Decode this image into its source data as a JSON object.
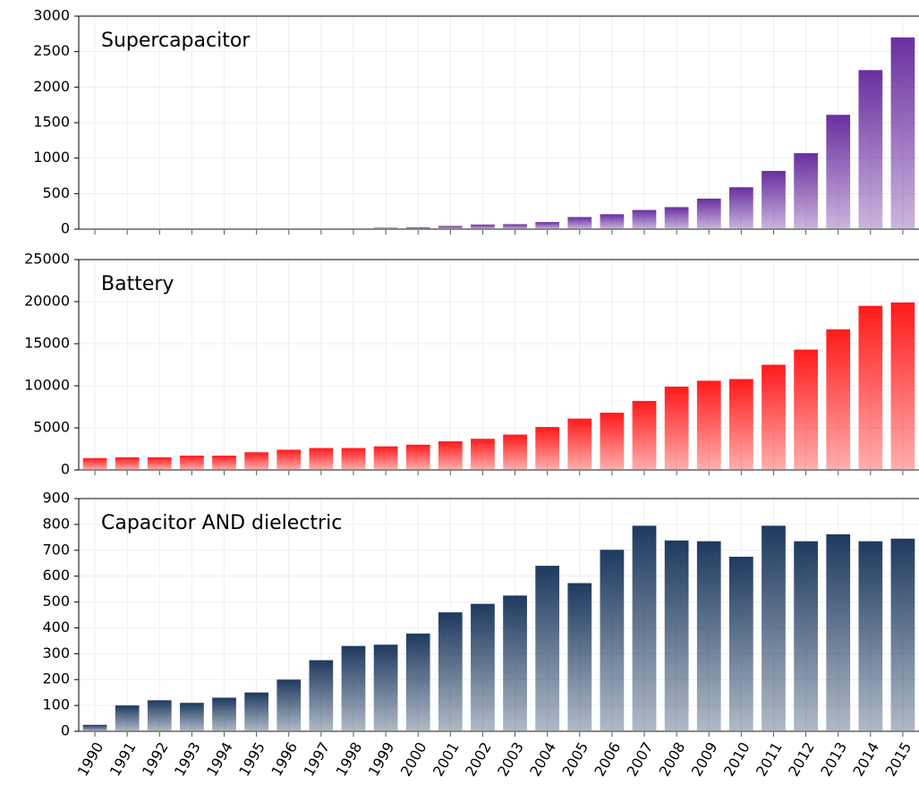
{
  "chart_data": [
    {
      "type": "bar",
      "title": "Supercapacitor",
      "color": "#6a2fa0",
      "values": [
        2,
        3,
        3,
        4,
        4,
        5,
        6,
        8,
        10,
        20,
        25,
        45,
        65,
        70,
        100,
        170,
        210,
        270,
        310,
        430,
        590,
        820,
        1070,
        1610,
        2240,
        2700
      ],
      "ylim": [
        0,
        3000
      ],
      "yticks": [
        0,
        500,
        1000,
        1500,
        2000,
        2500,
        3000
      ],
      "grid": true
    },
    {
      "type": "bar",
      "title": "Battery",
      "color": "#ff1a1a",
      "values": [
        1400,
        1500,
        1500,
        1700,
        1700,
        2100,
        2400,
        2600,
        2600,
        2800,
        3000,
        3400,
        3700,
        4200,
        5100,
        6100,
        6800,
        8200,
        9900,
        10600,
        10800,
        12500,
        14300,
        16700,
        19500,
        19900
      ],
      "ylim": [
        0,
        25000
      ],
      "yticks": [
        0,
        5000,
        10000,
        15000,
        20000,
        25000
      ],
      "grid": true
    },
    {
      "type": "bar",
      "title": "Capacitor AND dielectric",
      "color": "#1e3a5f",
      "categories": [
        "1990",
        "1991",
        "1992",
        "1993",
        "1994",
        "1995",
        "1996",
        "1997",
        "1998",
        "1999",
        "2000",
        "2001",
        "2002",
        "2003",
        "2004",
        "2005",
        "2006",
        "2007",
        "2008",
        "2009",
        "2010",
        "2011",
        "2012",
        "2013",
        "2014",
        "2015"
      ],
      "values": [
        25,
        100,
        120,
        110,
        130,
        150,
        200,
        275,
        330,
        335,
        378,
        460,
        493,
        525,
        640,
        573,
        702,
        795,
        738,
        735,
        675,
        795,
        735,
        762,
        735,
        745
      ],
      "ylim": [
        0,
        900
      ],
      "yticks": [
        0,
        100,
        200,
        300,
        400,
        500,
        600,
        700,
        800,
        900
      ],
      "grid": true
    }
  ]
}
